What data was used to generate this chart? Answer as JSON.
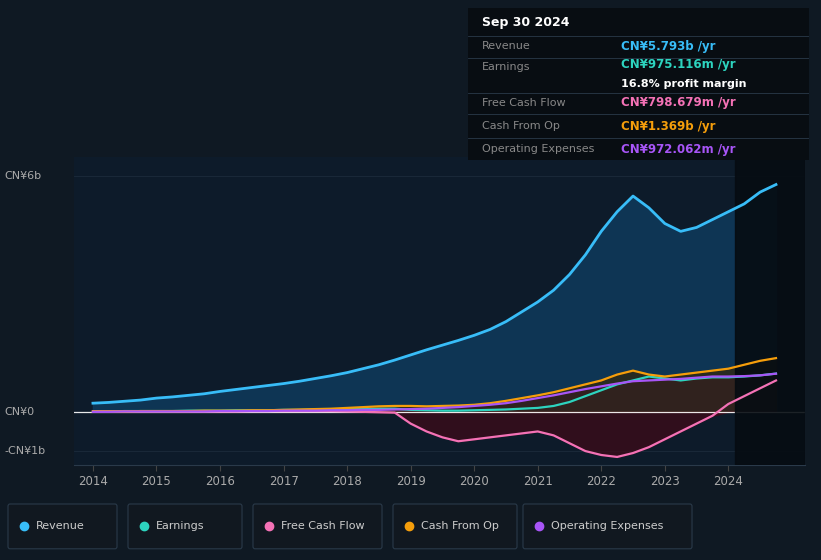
{
  "bg_color": "#0f1923",
  "chart_bg": "#0d1b2a",
  "grid_color": "#1e2d3d",
  "years": [
    2014,
    2014.25,
    2014.5,
    2014.75,
    2015,
    2015.25,
    2015.5,
    2015.75,
    2016,
    2016.25,
    2016.5,
    2016.75,
    2017,
    2017.25,
    2017.5,
    2017.75,
    2018,
    2018.25,
    2018.5,
    2018.75,
    2019,
    2019.25,
    2019.5,
    2019.75,
    2020,
    2020.25,
    2020.5,
    2020.75,
    2021,
    2021.25,
    2021.5,
    2021.75,
    2022,
    2022.25,
    2022.5,
    2022.75,
    2023,
    2023.25,
    2023.5,
    2023.75,
    2024,
    2024.25,
    2024.5,
    2024.75
  ],
  "revenue": [
    0.22,
    0.24,
    0.27,
    0.3,
    0.35,
    0.38,
    0.42,
    0.46,
    0.52,
    0.57,
    0.62,
    0.67,
    0.72,
    0.78,
    0.85,
    0.92,
    1.0,
    1.1,
    1.2,
    1.32,
    1.45,
    1.58,
    1.7,
    1.82,
    1.95,
    2.1,
    2.3,
    2.55,
    2.8,
    3.1,
    3.5,
    4.0,
    4.6,
    5.1,
    5.5,
    5.2,
    4.8,
    4.6,
    4.7,
    4.9,
    5.1,
    5.3,
    5.6,
    5.793
  ],
  "earnings": [
    0.01,
    0.01,
    0.02,
    0.02,
    0.02,
    0.02,
    0.03,
    0.03,
    0.03,
    0.04,
    0.04,
    0.04,
    0.05,
    0.05,
    0.06,
    0.06,
    0.07,
    0.07,
    0.08,
    0.08,
    0.05,
    0.04,
    0.03,
    0.03,
    0.04,
    0.05,
    0.06,
    0.08,
    0.1,
    0.15,
    0.25,
    0.4,
    0.55,
    0.7,
    0.8,
    0.9,
    0.85,
    0.8,
    0.85,
    0.88,
    0.88,
    0.9,
    0.93,
    0.975
  ],
  "free_cash_flow": [
    0.01,
    0.01,
    0.01,
    0.01,
    0.01,
    0.01,
    0.01,
    0.01,
    0.01,
    0.01,
    0.02,
    0.02,
    0.02,
    0.02,
    0.02,
    0.02,
    0.01,
    0.0,
    -0.01,
    -0.02,
    -0.3,
    -0.5,
    -0.65,
    -0.75,
    -0.7,
    -0.65,
    -0.6,
    -0.55,
    -0.5,
    -0.6,
    -0.8,
    -1.0,
    -1.1,
    -1.15,
    -1.05,
    -0.9,
    -0.7,
    -0.5,
    -0.3,
    -0.1,
    0.2,
    0.4,
    0.6,
    0.799
  ],
  "cash_from_op": [
    0.01,
    0.01,
    0.01,
    0.02,
    0.02,
    0.02,
    0.02,
    0.03,
    0.03,
    0.03,
    0.04,
    0.04,
    0.05,
    0.06,
    0.07,
    0.08,
    0.1,
    0.12,
    0.14,
    0.15,
    0.15,
    0.14,
    0.15,
    0.16,
    0.18,
    0.22,
    0.28,
    0.35,
    0.42,
    0.5,
    0.6,
    0.7,
    0.8,
    0.95,
    1.05,
    0.95,
    0.9,
    0.95,
    1.0,
    1.05,
    1.1,
    1.2,
    1.3,
    1.369
  ],
  "operating_expenses": [
    0.0,
    0.0,
    0.01,
    0.01,
    0.01,
    0.01,
    0.01,
    0.01,
    0.02,
    0.02,
    0.02,
    0.02,
    0.03,
    0.03,
    0.03,
    0.04,
    0.04,
    0.05,
    0.05,
    0.06,
    0.07,
    0.08,
    0.1,
    0.12,
    0.15,
    0.18,
    0.22,
    0.28,
    0.35,
    0.42,
    0.5,
    0.58,
    0.65,
    0.72,
    0.78,
    0.8,
    0.82,
    0.84,
    0.87,
    0.9,
    0.9,
    0.91,
    0.93,
    0.972
  ],
  "ylim": [
    -1.35,
    6.5
  ],
  "xlim": [
    2013.7,
    2025.2
  ],
  "xticks": [
    2014,
    2015,
    2016,
    2017,
    2018,
    2019,
    2020,
    2021,
    2022,
    2023,
    2024
  ],
  "line_colors": {
    "revenue": "#38bdf8",
    "earnings": "#2dd4bf",
    "free_cash_flow": "#f472b6",
    "cash_from_op": "#f59e0b",
    "operating_expenses": "#a855f7"
  },
  "fill_colors": {
    "revenue": "#0f3a5c",
    "earnings": "#0d3d3a",
    "free_cash_flow_neg": "#3d0a18",
    "cash_from_op": "#3a2500",
    "operating_expenses": "#2a1550"
  },
  "tooltip_bg": "#080d12",
  "tooltip_border": "#2a3a4a",
  "tooltip_rows": [
    {
      "label": "Revenue",
      "value": "CN¥5.793b /yr",
      "color": "#38bdf8"
    },
    {
      "label": "Earnings",
      "value": "CN¥975.116m /yr",
      "color": "#2dd4bf"
    },
    {
      "label": "",
      "value": "16.8% profit margin",
      "color": "#ffffff"
    },
    {
      "label": "Free Cash Flow",
      "value": "CN¥798.679m /yr",
      "color": "#f472b6"
    },
    {
      "label": "Cash From Op",
      "value": "CN¥1.369b /yr",
      "color": "#f59e0b"
    },
    {
      "label": "Operating Expenses",
      "value": "CN¥972.062m /yr",
      "color": "#a855f7"
    }
  ],
  "legend": [
    {
      "label": "Revenue",
      "color": "#38bdf8"
    },
    {
      "label": "Earnings",
      "color": "#2dd4bf"
    },
    {
      "label": "Free Cash Flow",
      "color": "#f472b6"
    },
    {
      "label": "Cash From Op",
      "color": "#f59e0b"
    },
    {
      "label": "Operating Expenses",
      "color": "#a855f7"
    }
  ]
}
